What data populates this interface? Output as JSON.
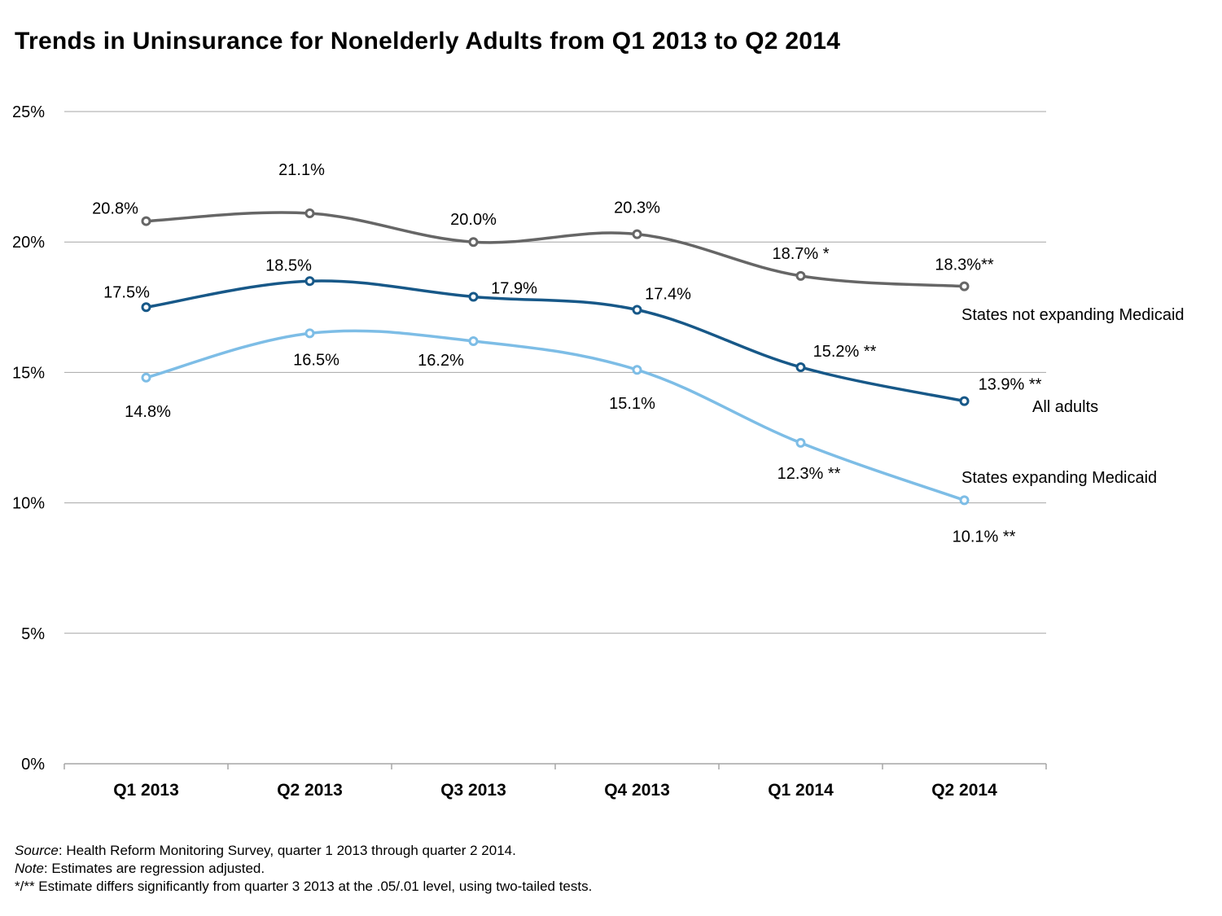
{
  "title": "Trends in Uninsurance for Nonelderly Adults from Q1 2013 to Q2 2014",
  "chart_data": {
    "type": "line",
    "categories": [
      "Q1 2013",
      "Q2 2013",
      "Q3 2013",
      "Q4 2013",
      "Q1 2014",
      "Q2 2014"
    ],
    "ylim": [
      0,
      25
    ],
    "yticks": [
      "0%",
      "5%",
      "10%",
      "15%",
      "20%",
      "25%"
    ],
    "grid": true,
    "series": [
      {
        "name": "States not expanding Medicaid",
        "color": "#666666",
        "values": [
          20.8,
          21.1,
          20.0,
          20.3,
          18.7,
          18.3
        ],
        "labels": [
          "20.8%",
          "21.1%",
          "20.0%",
          "20.3%",
          "18.7% *",
          "18.3%**"
        ]
      },
      {
        "name": "All adults",
        "color": "#175888",
        "values": [
          17.5,
          18.5,
          17.9,
          17.4,
          15.2,
          13.9
        ],
        "labels": [
          "17.5%",
          "18.5%",
          "17.9%",
          "17.4%",
          "15.2% **",
          "13.9% **"
        ]
      },
      {
        "name": "States expanding Medicaid",
        "color": "#7dbde6",
        "values": [
          14.8,
          16.5,
          16.2,
          15.1,
          12.3,
          10.1
        ],
        "labels": [
          "14.8%",
          "16.5%",
          "16.2%",
          "15.1%",
          "12.3% **",
          "10.1% **"
        ]
      }
    ]
  },
  "notes": {
    "source_label": "Source",
    "source_text": ": Health Reform Monitoring Survey, quarter 1 2013 through quarter 2 2014.",
    "note_label": "Note",
    "note_text": ": Estimates are regression adjusted.",
    "significance": "*/** Estimate differs significantly from quarter 3 2013 at the .05/.01 level, using two-tailed tests."
  }
}
